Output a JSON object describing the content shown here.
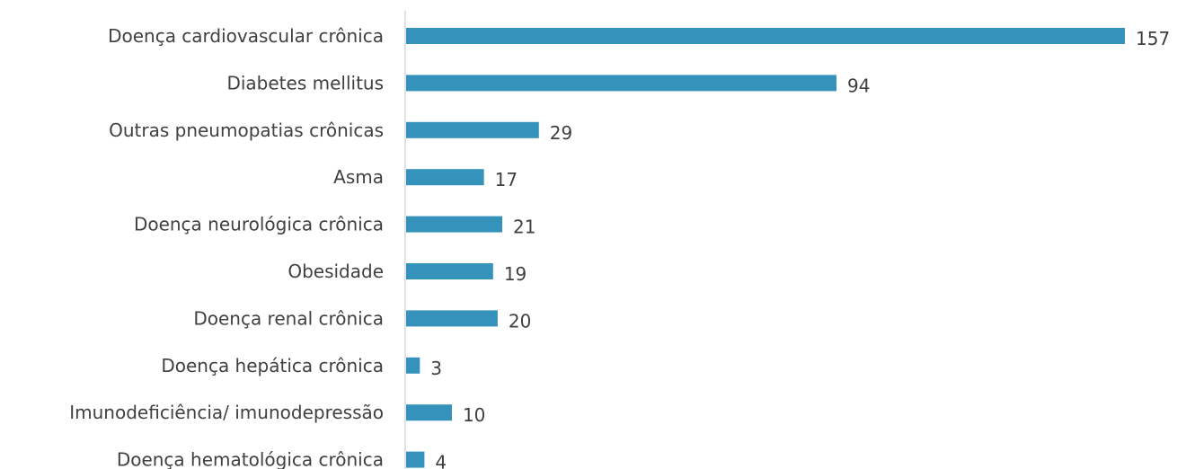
{
  "chart_data": {
    "type": "bar",
    "orientation": "horizontal",
    "title": "",
    "xlabel": "",
    "ylabel": "",
    "categories": [
      "Doença cardiovascular crônica",
      "Diabetes mellitus",
      "Outras pneumopatias crônicas",
      "Asma",
      "Doença neurológica crônica",
      "Obesidade",
      "Doença renal crônica",
      "Doença hepática crônica",
      "Imunodeficiência/ imunodepressão",
      "Doença hematológica crônica"
    ],
    "values": [
      157,
      94,
      29,
      17,
      21,
      19,
      20,
      3,
      10,
      4
    ],
    "xlim": [
      0,
      157
    ],
    "grid": false,
    "legend": "none",
    "data_labels": true,
    "bar_color": "#3592BB",
    "axis_color": "#D9D9D9",
    "text_color": "#404040"
  }
}
